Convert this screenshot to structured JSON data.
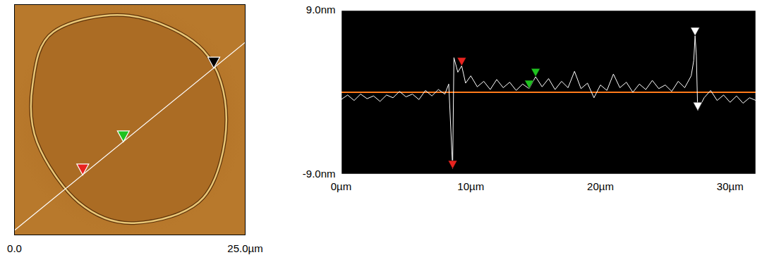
{
  "chart_data": [
    {
      "type": "image",
      "xlim": [
        0,
        25
      ],
      "ylim": [
        0,
        25
      ],
      "xticks": [
        {
          "value": 0,
          "label": "0.0"
        },
        {
          "value": 25,
          "label": "25.0µm"
        }
      ],
      "tick_labels": "x",
      "marker": "triangle-down",
      "scan_line": {
        "x": [
          0,
          25
        ],
        "y": [
          0.5,
          20.9
        ],
        "color": "#ffffff"
      },
      "markers": [
        {
          "x": 7.4,
          "y": 6.5,
          "color": "#e8231f"
        },
        {
          "x": 11.8,
          "y": 10.1,
          "color": "#1fc21f"
        },
        {
          "x": 21.6,
          "y": 18.1,
          "color": "#000000"
        }
      ]
    },
    {
      "type": "line",
      "xlim": [
        0,
        32
      ],
      "ylim": [
        -9,
        9
      ],
      "xticks": [
        {
          "value": 0,
          "label": "0µm"
        },
        {
          "value": 10,
          "label": "10µm"
        },
        {
          "value": 20,
          "label": "20µm"
        },
        {
          "value": 30,
          "label": "30µm"
        }
      ],
      "yticks": [
        {
          "value": -9,
          "label": "-9.0nm"
        },
        {
          "value": 9,
          "label": "9.0nm"
        }
      ],
      "color": "#ffffff",
      "marker": "triangle-down",
      "baseline": {
        "value": 0,
        "color": "#ff7a1a"
      },
      "x": [
        0,
        0.5,
        1,
        1.5,
        2,
        2.5,
        3,
        3.5,
        4,
        4.5,
        5,
        5.5,
        6,
        6.5,
        7,
        7.5,
        8,
        8.3,
        8.6,
        8.7,
        9,
        9.3,
        9.6,
        10,
        10.5,
        11,
        11.5,
        12,
        12.5,
        13,
        13.5,
        14,
        14.5,
        15,
        15.5,
        16,
        16.5,
        17,
        17.5,
        18,
        18.5,
        19,
        19.5,
        20,
        20.5,
        21,
        21.5,
        22,
        22.5,
        23,
        23.5,
        24,
        24.5,
        25,
        25.5,
        26,
        26.5,
        27,
        27.2,
        27.3,
        27.4,
        27.5,
        28,
        28.5,
        29,
        29.5,
        30,
        30.5,
        31,
        31.5,
        32
      ],
      "values": [
        -0.8,
        -0.3,
        -0.9,
        -0.2,
        -0.7,
        -0.4,
        -1.0,
        -0.3,
        -0.6,
        0.1,
        -0.5,
        -0.2,
        -0.8,
        0.2,
        -0.4,
        0.3,
        -0.2,
        0.9,
        -8.4,
        3.8,
        2.2,
        2.9,
        1.0,
        1.8,
        0.6,
        1.2,
        0.3,
        1.4,
        0.5,
        1.1,
        0.2,
        0.9,
        0.4,
        1.7,
        0.6,
        1.5,
        0.3,
        1.2,
        0.5,
        2.3,
        0.4,
        1.0,
        -0.6,
        0.8,
        0.2,
        2.0,
        0.5,
        1.1,
        0.0,
        0.9,
        0.3,
        1.3,
        0.4,
        0.8,
        0.1,
        1.2,
        0.5,
        1.8,
        3.5,
        6.2,
        4.0,
        -2.0,
        -0.6,
        0.2,
        -0.9,
        -0.3,
        -1.1,
        -0.4,
        -1.2,
        -0.6,
        -0.9
      ],
      "markers": [
        {
          "x": 9.3,
          "y": 2.9,
          "color": "#e8231f"
        },
        {
          "x": 8.6,
          "y": -8.4,
          "color": "#e8231f"
        },
        {
          "x": 14.5,
          "y": 0.4,
          "color": "#1fc21f"
        },
        {
          "x": 15,
          "y": 1.7,
          "color": "#1fc21f"
        },
        {
          "x": 27.3,
          "y": 6.2,
          "color": "#ffffff"
        },
        {
          "x": 27.5,
          "y": -2.0,
          "color": "#ffffff"
        }
      ]
    }
  ]
}
